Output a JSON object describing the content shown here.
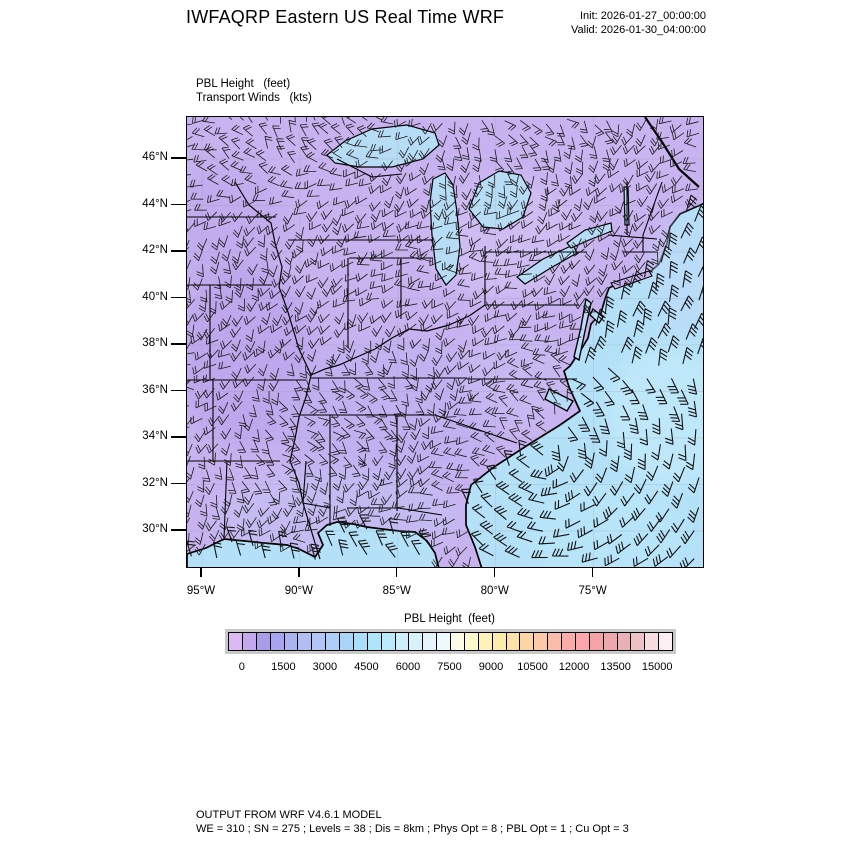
{
  "header": {
    "title": "IWFAQRP Eastern US Real Time WRF",
    "init_line": "Init: 2026-01-27_00:00:00",
    "valid_line": "Valid: 2026-01-30_04:00:00"
  },
  "map": {
    "field_label_1": "PBL Height   (feet)",
    "field_label_2": "Transport Winds   (kts)",
    "lat_ticks": [
      "46°N",
      "44°N",
      "42°N",
      "40°N",
      "38°N",
      "36°N",
      "34°N",
      "32°N",
      "30°N"
    ],
    "lon_ticks": [
      "95°W",
      "90°W",
      "85°W",
      "80°W",
      "75°W"
    ],
    "land_color": "#c8b3f0",
    "ocean_color": "#b4e1f8",
    "lake_color": "#b7dcf6"
  },
  "colorbar": {
    "title": "PBL Height  (feet)",
    "tick_labels": [
      "0",
      "1500",
      "3000",
      "4500",
      "6000",
      "7500",
      "9000",
      "10500",
      "12000",
      "13500",
      "15000"
    ],
    "colors": [
      "#dcb9f2",
      "#c5a9ee",
      "#ab9ce9",
      "#a8a5ee",
      "#abb3f1",
      "#b2bdf4",
      "#b2c5f6",
      "#aecdf8",
      "#a9d5f9",
      "#a9dffa",
      "#aee5fa",
      "#b9e9fb",
      "#cdeffc",
      "#d9f1fc",
      "#e5f5fd",
      "#effafe",
      "#fdfde7",
      "#fdfacd",
      "#fdf3b9",
      "#fcedaa",
      "#fce1a8",
      "#fdd5a5",
      "#fdc9a9",
      "#fdbba9",
      "#fdaba9",
      "#fda5ad",
      "#f5a3a9",
      "#eda7ad",
      "#e9b1b5",
      "#edc1c5",
      "#f7dde1",
      "#fbeff3"
    ]
  },
  "footer": {
    "line1": "OUTPUT FROM WRF V4.6.1 MODEL",
    "line2": "WE = 310 ; SN = 275 ; Levels = 38 ; Dis = 8km ; Phys Opt = 8 ; PBL Opt = 1 ; Cu Opt = 3"
  },
  "chart_data": {
    "type": "heatmap",
    "title": "IWFAQRP Eastern US Real Time WRF",
    "field": "PBL Height",
    "units": "feet",
    "overlay_field": "Transport Winds",
    "overlay_units": "kts",
    "overlay_style": "dense black wind barbs over land, sparser larger barbs over ocean",
    "init_time": "2026-01-27_00:00:00",
    "valid_time": "2026-01-30_04:00:00",
    "extent": {
      "lon_west_deg": 95.8,
      "lon_east_deg": 69.3,
      "lat_south_deg": 28.4,
      "lat_north_deg": 47.8
    },
    "x_ticks": [
      "95°W",
      "90°W",
      "85°W",
      "80°W",
      "75°W"
    ],
    "y_ticks": [
      "46°N",
      "44°N",
      "42°N",
      "40°N",
      "38°N",
      "36°N",
      "34°N",
      "32°N",
      "30°N"
    ],
    "colorbar": {
      "title": "PBL Height  (feet)",
      "tick_values": [
        0,
        1500,
        3000,
        4500,
        6000,
        7500,
        9000,
        10500,
        12000,
        13500,
        15000
      ],
      "cell_interval_feet": 500,
      "n_cells": 32
    },
    "observed_regions": [
      {
        "region": "interior land: Midwest, Ohio Valley, Northeast, Southeast states",
        "pbl_height_ft": "250-1500",
        "appearance": "light purple"
      },
      {
        "region": "lower Mississippi valley and Gulf coastal plain",
        "pbl_height_ft": "1000-2500",
        "appearance": "blue-purple"
      },
      {
        "region": "Great Lakes water surfaces",
        "pbl_height_ft": "3500-5500",
        "appearance": "light blue"
      },
      {
        "region": "Atlantic Ocean and Gulf of Mexico",
        "pbl_height_ft": "4000-6500",
        "appearance": "light cyan-blue"
      }
    ],
    "winds": {
      "typical_speed_kts": "5-20",
      "note": "northwesterly flow off New England coast; curved flow offshore of the Southeast coast"
    }
  }
}
